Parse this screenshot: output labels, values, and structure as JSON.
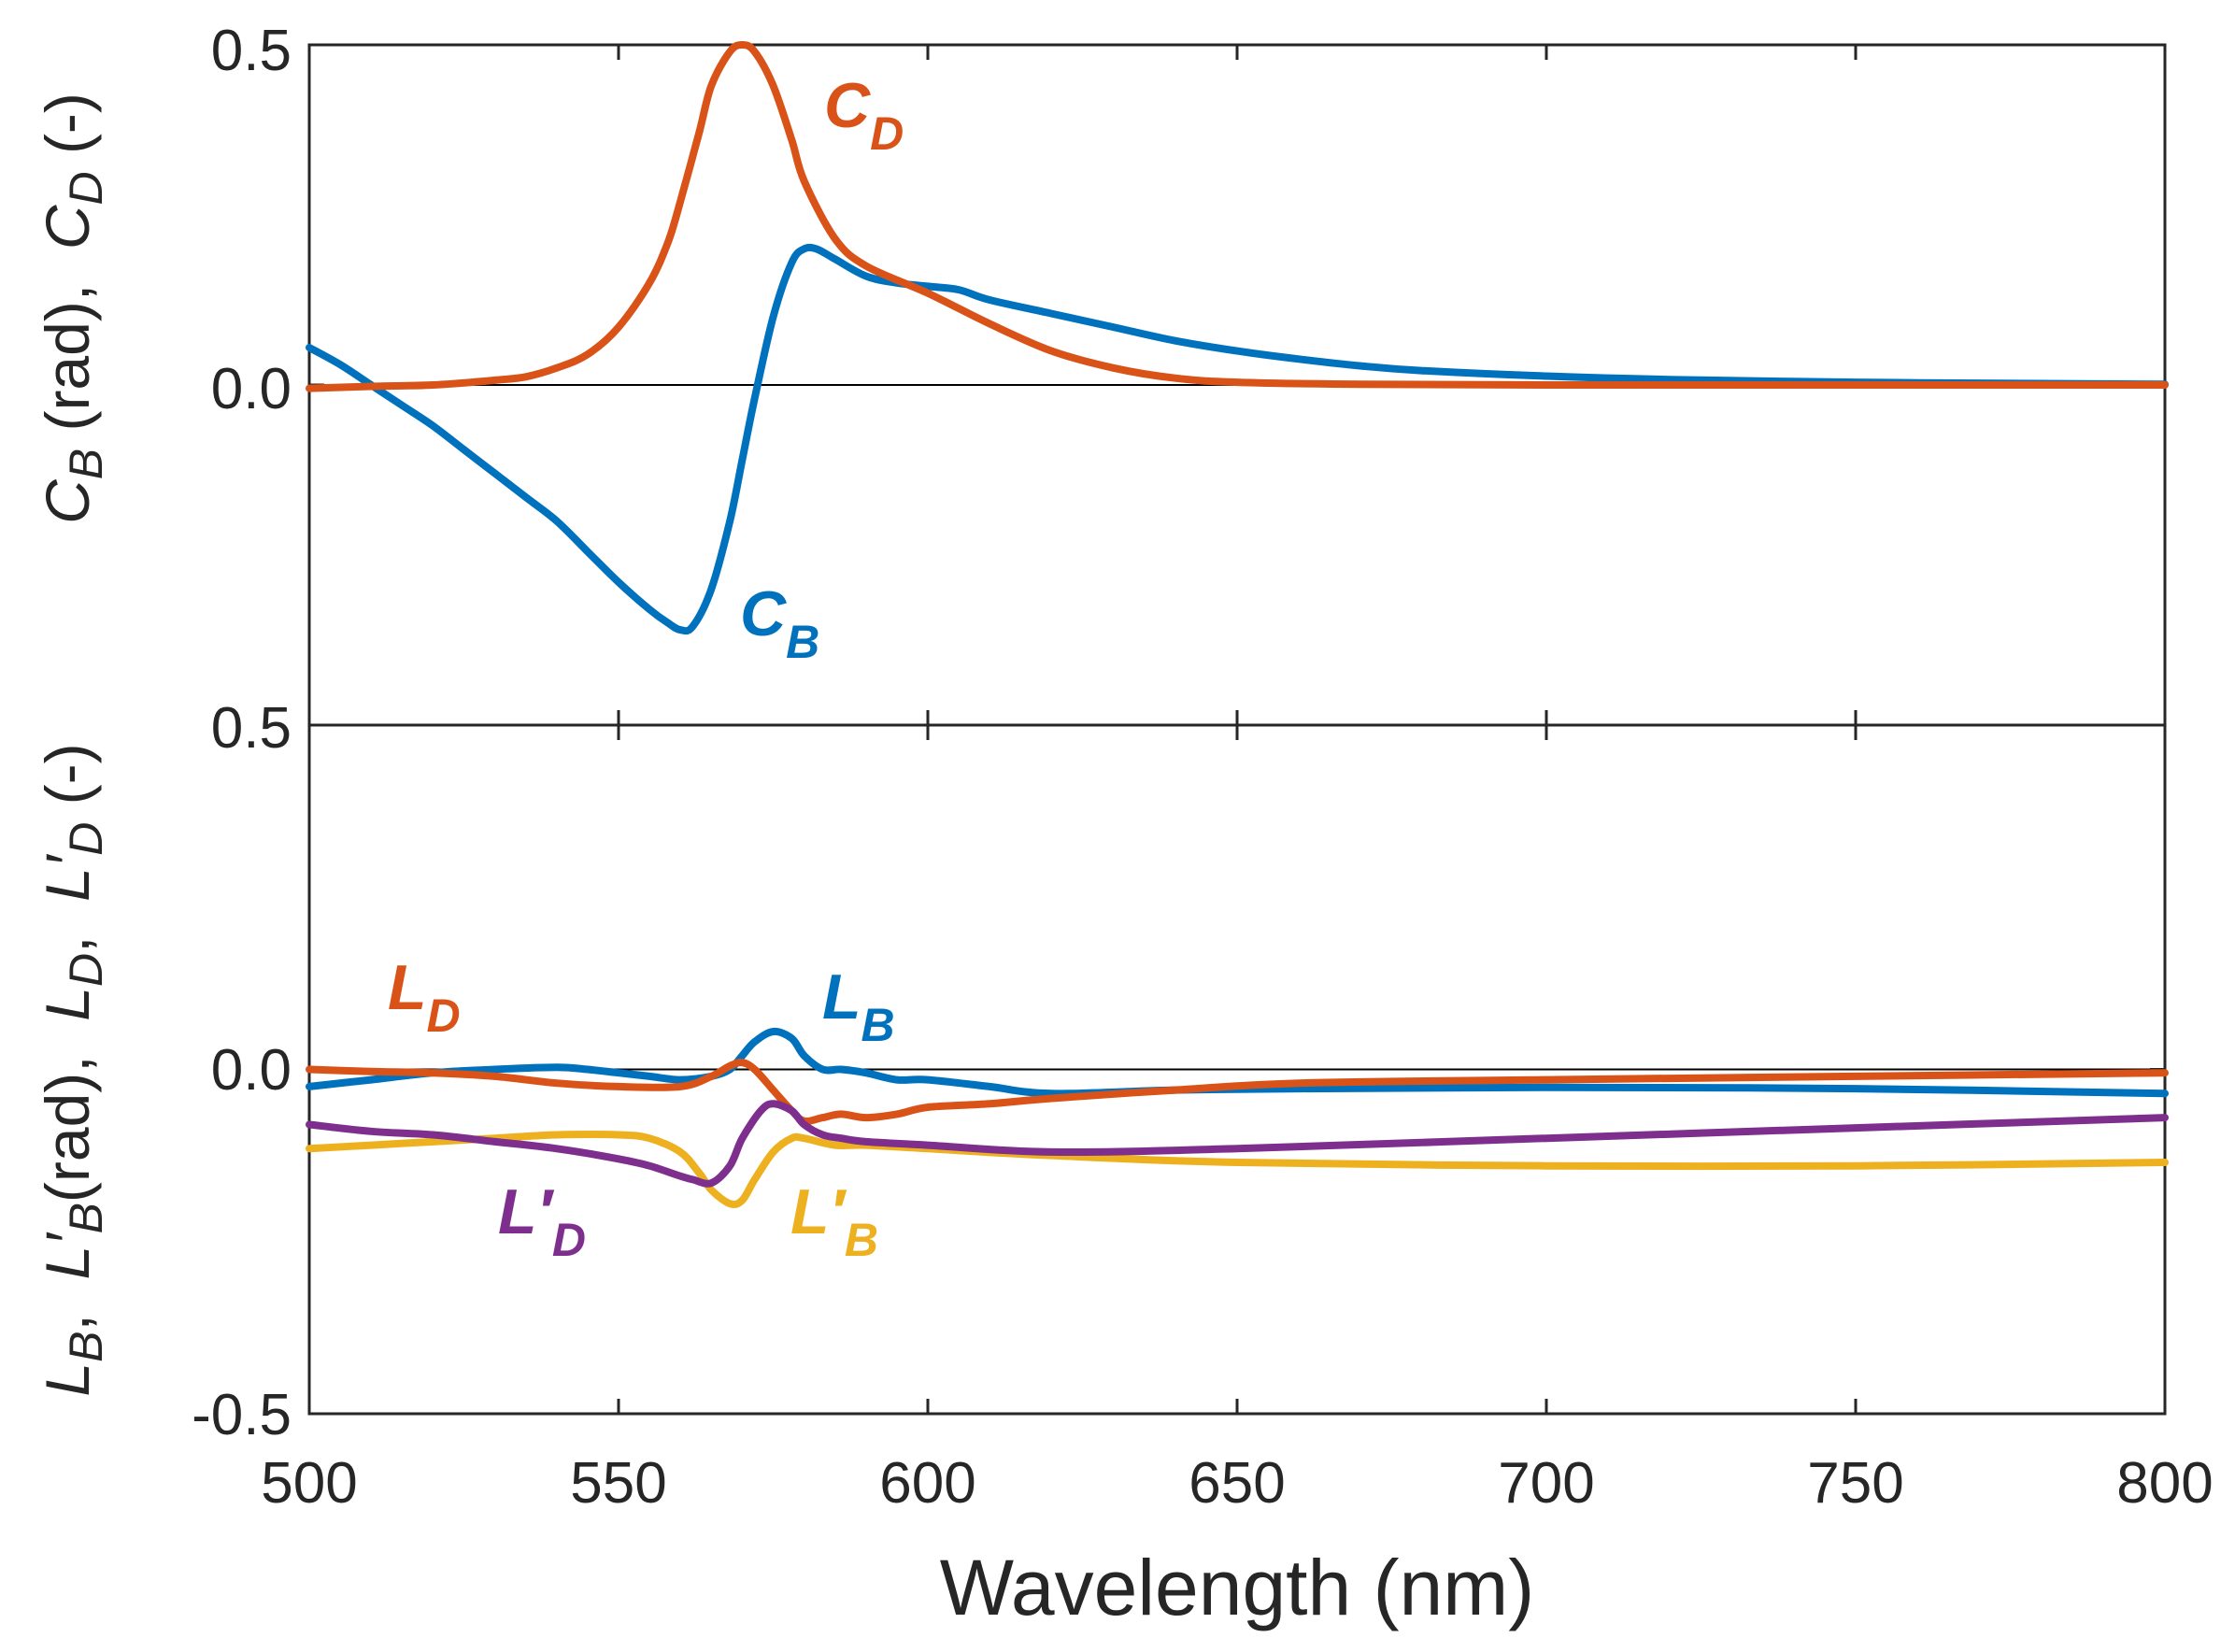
{
  "chart_data": [
    {
      "type": "line",
      "panel": "top",
      "ylabel_parts": [
        "C",
        "B",
        " (rad),  ",
        "C",
        "D",
        " (-)"
      ],
      "xlim": [
        500,
        800
      ],
      "ylim": [
        -0.5,
        0.5
      ],
      "yticks": [
        {
          "value": 0.5,
          "label": "0.5"
        },
        {
          "value": 0.0,
          "label": "0.0"
        }
      ],
      "zero_line": true,
      "series": [
        {
          "name": "C_B",
          "label_main": "C",
          "label_sub": "B",
          "color": "#0072BD",
          "x": [
            500,
            505,
            510,
            515,
            520,
            525,
            530,
            535,
            540,
            545,
            550,
            555,
            558,
            560,
            562,
            565,
            568,
            570,
            572,
            575,
            578,
            580,
            582,
            585,
            590,
            595,
            600,
            605,
            610,
            620,
            630,
            640,
            650,
            660,
            670,
            680,
            700,
            720,
            750,
            780,
            800
          ],
          "y": [
            0.055,
            0.03,
            0.0,
            -0.03,
            -0.06,
            -0.095,
            -0.13,
            -0.165,
            -0.2,
            -0.245,
            -0.29,
            -0.33,
            -0.35,
            -0.36,
            -0.355,
            -0.3,
            -0.2,
            -0.11,
            -0.02,
            0.1,
            0.18,
            0.2,
            0.2,
            0.185,
            0.16,
            0.15,
            0.145,
            0.14,
            0.125,
            0.105,
            0.085,
            0.065,
            0.05,
            0.038,
            0.028,
            0.021,
            0.013,
            0.008,
            0.004,
            0.002,
            0.001
          ]
        },
        {
          "name": "C_D",
          "label_main": "C",
          "label_sub": "D",
          "color": "#D95319",
          "x": [
            500,
            510,
            520,
            530,
            535,
            540,
            545,
            550,
            555,
            558,
            560,
            563,
            565,
            568,
            570,
            572,
            575,
            578,
            580,
            585,
            590,
            600,
            610,
            620,
            630,
            640,
            650,
            670,
            700,
            750,
            800
          ],
          "y": [
            -0.005,
            -0.002,
            0.0,
            0.007,
            0.012,
            0.025,
            0.045,
            0.085,
            0.15,
            0.21,
            0.27,
            0.37,
            0.44,
            0.49,
            0.5,
            0.49,
            0.44,
            0.36,
            0.3,
            0.215,
            0.175,
            0.135,
            0.09,
            0.05,
            0.025,
            0.01,
            0.004,
            0.001,
            0.0,
            0.0,
            0.0
          ]
        }
      ]
    },
    {
      "type": "line",
      "panel": "bottom",
      "ylabel_parts": [
        "L",
        "B",
        ",  ",
        "L′",
        "B",
        "(rad),  ",
        "L",
        "D",
        ",  ",
        "L′",
        "D",
        " (-)"
      ],
      "xlabel": "Wavelength (nm)",
      "xlim": [
        500,
        800
      ],
      "ylim": [
        -0.5,
        0.5
      ],
      "xticks": [
        {
          "value": 500,
          "label": "500"
        },
        {
          "value": 550,
          "label": "550"
        },
        {
          "value": 600,
          "label": "600"
        },
        {
          "value": 650,
          "label": "650"
        },
        {
          "value": 700,
          "label": "700"
        },
        {
          "value": 750,
          "label": "750"
        },
        {
          "value": 800,
          "label": "800"
        }
      ],
      "yticks": [
        {
          "value": 0.5,
          "label": "0.5"
        },
        {
          "value": 0.0,
          "label": "0.0"
        },
        {
          "value": -0.5,
          "label": "-0.5"
        }
      ],
      "zero_line": true,
      "series": [
        {
          "name": "L_B",
          "label_main": "L",
          "label_sub": "B",
          "color": "#0072BD",
          "x": [
            500,
            510,
            520,
            530,
            540,
            545,
            550,
            555,
            560,
            565,
            568,
            570,
            572,
            575,
            578,
            580,
            583,
            586,
            590,
            595,
            600,
            610,
            620,
            640,
            660,
            700,
            750,
            800
          ],
          "y": [
            -0.025,
            -0.015,
            -0.005,
            0.0,
            0.003,
            0.0,
            -0.005,
            -0.01,
            -0.015,
            -0.01,
            0.0,
            0.02,
            0.04,
            0.055,
            0.045,
            0.02,
            0.0,
            0.0,
            -0.005,
            -0.015,
            -0.015,
            -0.025,
            -0.035,
            -0.03,
            -0.028,
            -0.026,
            -0.028,
            -0.035
          ]
        },
        {
          "name": "L_D",
          "label_main": "L",
          "label_sub": "D",
          "color": "#D95319",
          "x": [
            500,
            510,
            520,
            530,
            540,
            550,
            560,
            565,
            568,
            570,
            572,
            575,
            578,
            580,
            583,
            586,
            590,
            595,
            600,
            610,
            620,
            640,
            660,
            700,
            750,
            800
          ],
          "y": [
            0.0,
            -0.003,
            -0.005,
            -0.01,
            -0.02,
            -0.025,
            -0.025,
            -0.01,
            0.005,
            0.01,
            0.0,
            -0.03,
            -0.06,
            -0.075,
            -0.07,
            -0.065,
            -0.07,
            -0.065,
            -0.055,
            -0.05,
            -0.042,
            -0.03,
            -0.02,
            -0.015,
            -0.01,
            -0.005
          ]
        },
        {
          "name": "L'_B",
          "label_main": "L′",
          "label_sub": "B",
          "color": "#EDB120",
          "x": [
            500,
            510,
            520,
            530,
            540,
            550,
            555,
            560,
            563,
            565,
            568,
            570,
            572,
            575,
            578,
            580,
            585,
            590,
            600,
            620,
            650,
            700,
            750,
            800
          ],
          "y": [
            -0.115,
            -0.11,
            -0.105,
            -0.1,
            -0.095,
            -0.095,
            -0.1,
            -0.12,
            -0.15,
            -0.175,
            -0.195,
            -0.19,
            -0.16,
            -0.12,
            -0.1,
            -0.1,
            -0.11,
            -0.11,
            -0.115,
            -0.125,
            -0.135,
            -0.14,
            -0.14,
            -0.135
          ]
        },
        {
          "name": "L'_D",
          "label_main": "L′",
          "label_sub": "D",
          "color": "#7E2F8E",
          "x": [
            500,
            510,
            520,
            530,
            540,
            550,
            555,
            560,
            562,
            565,
            568,
            570,
            573,
            575,
            578,
            580,
            583,
            586,
            590,
            600,
            620,
            650,
            700,
            750,
            800
          ],
          "y": [
            -0.08,
            -0.09,
            -0.095,
            -0.105,
            -0.115,
            -0.13,
            -0.14,
            -0.155,
            -0.16,
            -0.165,
            -0.14,
            -0.1,
            -0.06,
            -0.05,
            -0.06,
            -0.08,
            -0.095,
            -0.1,
            -0.105,
            -0.11,
            -0.12,
            -0.115,
            -0.1,
            -0.085,
            -0.07
          ]
        }
      ]
    }
  ]
}
